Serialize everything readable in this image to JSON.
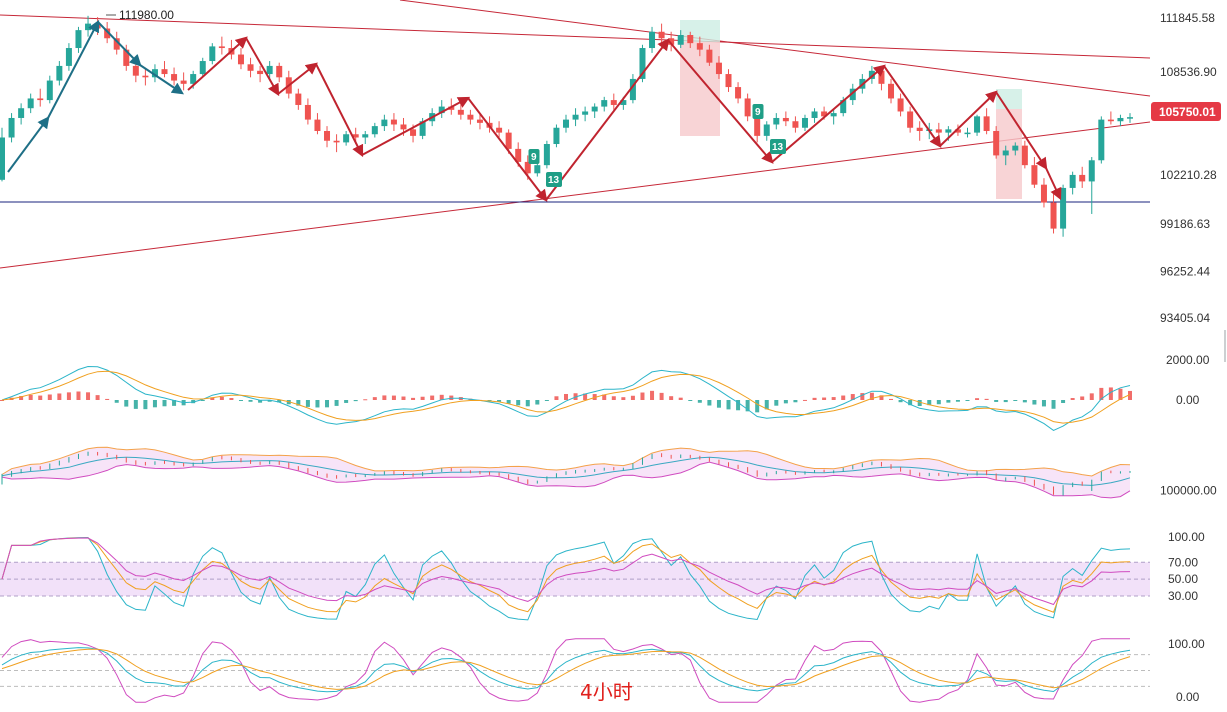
{
  "chart_data": [
    {
      "type": "candlestick",
      "panel": "price",
      "timeframe_label": "4小时",
      "y_ticks": [
        "111845.58",
        "108536.90",
        "102210.28",
        "99186.63",
        "96252.44",
        "93405.04"
      ],
      "y_tick_values": [
        111845.58,
        108536.9,
        102210.28,
        99186.63,
        96252.44,
        93405.04
      ],
      "last_price": "105750.01",
      "last_price_value": 105750.01,
      "peak_label": "111980.00",
      "peak_value": 111980.0,
      "sequence_labels": [
        "9",
        "13",
        "9",
        "13"
      ],
      "colors": {
        "up": "#26a69a",
        "down": "#ef5350",
        "trendline": "#c62838",
        "arrow_red": "#c0242f",
        "arrow_teal": "#1e6f86",
        "support": "#1a237e"
      },
      "ohlc": [
        [
          101900,
          105100,
          101800,
          104500
        ],
        [
          104500,
          106000,
          104200,
          105700
        ],
        [
          105700,
          106600,
          105300,
          106300
        ],
        [
          106300,
          107200,
          106000,
          106900
        ],
        [
          106900,
          107500,
          106400,
          106800
        ],
        [
          106800,
          108300,
          106600,
          108000
        ],
        [
          108000,
          109200,
          107700,
          108900
        ],
        [
          108900,
          110300,
          108600,
          110000
        ],
        [
          110000,
          111300,
          109700,
          111100
        ],
        [
          111100,
          111980,
          110700,
          111500
        ],
        [
          111500,
          111900,
          110800,
          111200
        ],
        [
          111200,
          111600,
          110300,
          110600
        ],
        [
          110600,
          111000,
          109600,
          109900
        ],
        [
          109900,
          110200,
          108600,
          108900
        ],
        [
          108900,
          109300,
          107900,
          108300
        ],
        [
          108300,
          108800,
          107700,
          108200
        ],
        [
          108200,
          109000,
          107900,
          108700
        ],
        [
          108700,
          109200,
          108200,
          108400
        ],
        [
          108400,
          108800,
          107700,
          108000
        ],
        [
          108000,
          108500,
          107400,
          107800
        ],
        [
          107800,
          108600,
          107500,
          108400
        ],
        [
          108400,
          109400,
          108200,
          109200
        ],
        [
          109200,
          110300,
          109000,
          110100
        ],
        [
          110100,
          110700,
          109600,
          110000
        ],
        [
          110000,
          110500,
          109300,
          109600
        ],
        [
          109600,
          110000,
          108700,
          109000
        ],
        [
          109000,
          109400,
          108200,
          108600
        ],
        [
          108600,
          108900,
          107900,
          108400
        ],
        [
          108400,
          109200,
          108100,
          108900
        ],
        [
          108900,
          109100,
          107900,
          108200
        ],
        [
          108200,
          108600,
          106900,
          107200
        ],
        [
          107200,
          107500,
          106200,
          106500
        ],
        [
          106500,
          106900,
          105300,
          105600
        ],
        [
          105600,
          106000,
          104700,
          104900
        ],
        [
          104900,
          105200,
          103900,
          104300
        ],
        [
          104300,
          104700,
          103600,
          104200
        ],
        [
          104200,
          104900,
          104000,
          104700
        ],
        [
          104700,
          105100,
          104100,
          104500
        ],
        [
          104500,
          104900,
          104100,
          104700
        ],
        [
          104700,
          105400,
          104500,
          105200
        ],
        [
          105200,
          105900,
          104900,
          105600
        ],
        [
          105600,
          106000,
          104900,
          105300
        ],
        [
          105300,
          105700,
          104600,
          105000
        ],
        [
          105000,
          105300,
          104200,
          104600
        ],
        [
          104600,
          105700,
          104400,
          105500
        ],
        [
          105500,
          106300,
          105200,
          106000
        ],
        [
          106000,
          106800,
          105700,
          106400
        ],
        [
          106400,
          106900,
          105900,
          106200
        ],
        [
          106200,
          106600,
          105600,
          105900
        ],
        [
          105900,
          106200,
          105300,
          105600
        ],
        [
          105600,
          106000,
          105000,
          105400
        ],
        [
          105400,
          105800,
          104800,
          105100
        ],
        [
          105100,
          105500,
          104500,
          104800
        ],
        [
          104800,
          105000,
          103500,
          103800
        ],
        [
          103800,
          104200,
          102700,
          103000
        ],
        [
          103000,
          103400,
          101900,
          102300
        ],
        [
          102300,
          103000,
          102100,
          102800
        ],
        [
          102800,
          104300,
          102600,
          104100
        ],
        [
          104100,
          105300,
          103900,
          105100
        ],
        [
          105100,
          105900,
          104800,
          105600
        ],
        [
          105600,
          106300,
          105200,
          105900
        ],
        [
          105900,
          106400,
          105500,
          106100
        ],
        [
          106100,
          106600,
          105700,
          106400
        ],
        [
          106400,
          107000,
          106100,
          106800
        ],
        [
          106800,
          107200,
          106200,
          106500
        ],
        [
          106500,
          107000,
          106200,
          106800
        ],
        [
          106800,
          108400,
          106600,
          108100
        ],
        [
          108100,
          110200,
          107900,
          110000
        ],
        [
          110000,
          111300,
          109700,
          111000
        ],
        [
          111000,
          111500,
          110300,
          110600
        ],
        [
          110600,
          111000,
          109800,
          110200
        ],
        [
          110200,
          111100,
          110000,
          110800
        ],
        [
          110800,
          111000,
          110000,
          110300
        ],
        [
          110300,
          110700,
          109500,
          109900
        ],
        [
          109900,
          110200,
          108900,
          109100
        ],
        [
          109100,
          109500,
          108100,
          108400
        ],
        [
          108400,
          108700,
          107300,
          107600
        ],
        [
          107600,
          107900,
          106600,
          106900
        ],
        [
          106900,
          107200,
          105500,
          105800
        ],
        [
          105800,
          106200,
          104200,
          104600
        ],
        [
          104600,
          105500,
          104300,
          105300
        ],
        [
          105300,
          106000,
          105000,
          105700
        ],
        [
          105700,
          106100,
          105200,
          105500
        ],
        [
          105500,
          105800,
          104800,
          105100
        ],
        [
          105100,
          105900,
          104900,
          105700
        ],
        [
          105700,
          106300,
          105400,
          106100
        ],
        [
          106100,
          106400,
          105600,
          105800
        ],
        [
          105800,
          106200,
          105300,
          106000
        ],
        [
          106000,
          107000,
          105800,
          106800
        ],
        [
          106800,
          107800,
          106500,
          107500
        ],
        [
          107500,
          108400,
          107200,
          108100
        ],
        [
          108100,
          108900,
          107800,
          108600
        ],
        [
          108600,
          108800,
          107400,
          107800
        ],
        [
          107800,
          108100,
          106600,
          106900
        ],
        [
          106900,
          107200,
          105800,
          106100
        ],
        [
          106100,
          106400,
          104800,
          105100
        ],
        [
          105100,
          105500,
          104300,
          104900
        ],
        [
          104900,
          105400,
          104400,
          105000
        ],
        [
          105000,
          105400,
          104500,
          104800
        ],
        [
          104800,
          105200,
          104300,
          105000
        ],
        [
          105000,
          105300,
          104600,
          104800
        ],
        [
          104800,
          105100,
          104500,
          104800
        ],
        [
          104800,
          105900,
          104600,
          105800
        ],
        [
          105800,
          106300,
          104700,
          104900
        ],
        [
          104900,
          105200,
          103200,
          103400
        ],
        [
          103400,
          104000,
          102800,
          103700
        ],
        [
          103700,
          104200,
          103400,
          104000
        ],
        [
          104000,
          104300,
          102600,
          102800
        ],
        [
          102800,
          103300,
          101400,
          101600
        ],
        [
          101600,
          102000,
          100200,
          100500
        ],
        [
          100500,
          101200,
          98600,
          98900
        ],
        [
          98900,
          101600,
          98400,
          101400
        ],
        [
          101400,
          102400,
          101000,
          102200
        ],
        [
          102200,
          102700,
          101400,
          101800
        ],
        [
          101800,
          103300,
          99800,
          103100
        ],
        [
          103100,
          105800,
          102900,
          105600
        ],
        [
          105600,
          106100,
          105300,
          105500
        ],
        [
          105500,
          105900,
          105200,
          105700
        ],
        [
          105700,
          106000,
          105400,
          105750
        ]
      ]
    },
    {
      "type": "macd",
      "panel": "macd",
      "y_ticks": [
        "2000.00",
        "0.00"
      ],
      "y_tick_values": [
        2000,
        0
      ],
      "colors": {
        "macd": "#2cb5c9",
        "signal": "#f0a020",
        "hist_up": "#ef5350",
        "hist_down": "#26a69a"
      }
    },
    {
      "type": "bollinger",
      "panel": "bollinger",
      "y_ticks": [
        "100000.00"
      ],
      "y_tick_values": [
        100000
      ],
      "colors": {
        "upper": "#f4a24a",
        "lower": "#d04cc0",
        "middle": "#3aa9c2",
        "band_fill": "#f3d8f5"
      }
    },
    {
      "type": "rsi",
      "panel": "rsi",
      "y_ticks": [
        "100.00",
        "70.00",
        "50.00",
        "30.00"
      ],
      "y_tick_values": [
        100,
        70,
        50,
        30
      ],
      "colors": {
        "rsi6": "#2cb5c9",
        "rsi12": "#f0a020",
        "rsi24": "#d04cc0",
        "zone_fill": "#efd9f7"
      }
    },
    {
      "type": "kdj",
      "panel": "kdj",
      "y_ticks": [
        "100.00",
        "0.00"
      ],
      "y_tick_values": [
        100,
        0
      ],
      "colors": {
        "k": "#2cb5c9",
        "d": "#f0a020",
        "j": "#d04cc0"
      }
    }
  ]
}
